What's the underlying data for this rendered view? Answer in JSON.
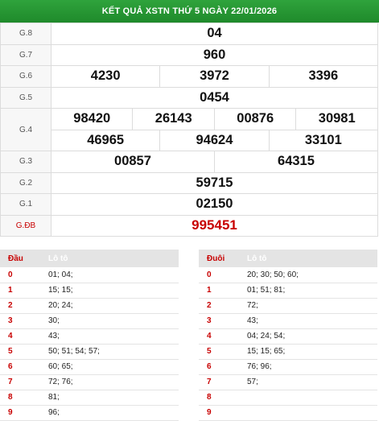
{
  "header": {
    "title": "KẾT QUẢ XSTN THỨ 5 NGÀY 22/01/2026"
  },
  "results": {
    "g8": {
      "label": "G.8",
      "numbers": [
        "04"
      ]
    },
    "g7": {
      "label": "G.7",
      "numbers": [
        "960"
      ]
    },
    "g6": {
      "label": "G.6",
      "numbers": [
        "4230",
        "3972",
        "3396"
      ]
    },
    "g5": {
      "label": "G.5",
      "numbers": [
        "0454"
      ]
    },
    "g4": {
      "label": "G.4",
      "row1": [
        "98420",
        "26143",
        "00876",
        "30981"
      ],
      "row2": [
        "46965",
        "94624",
        "33101"
      ]
    },
    "g3": {
      "label": "G.3",
      "numbers": [
        "00857",
        "64315"
      ]
    },
    "g2": {
      "label": "G.2",
      "numbers": [
        "59715"
      ]
    },
    "g1": {
      "label": "G.1",
      "numbers": [
        "02150"
      ]
    },
    "gdb": {
      "label": "G.ĐB",
      "numbers": [
        "995451"
      ]
    }
  },
  "loto_head": {
    "col1": "Đầu",
    "col2": "Lô tô",
    "rows": [
      {
        "digit": "0",
        "values": "01; 04;"
      },
      {
        "digit": "1",
        "values": "15; 15;"
      },
      {
        "digit": "2",
        "values": "20; 24;"
      },
      {
        "digit": "3",
        "values": "30;"
      },
      {
        "digit": "4",
        "values": "43;"
      },
      {
        "digit": "5",
        "values": "50; 51; 54; 57;"
      },
      {
        "digit": "6",
        "values": "60; 65;"
      },
      {
        "digit": "7",
        "values": "72; 76;"
      },
      {
        "digit": "8",
        "values": "81;"
      },
      {
        "digit": "9",
        "values": "96;"
      }
    ]
  },
  "loto_tail": {
    "col1": "Đuôi",
    "col2": "Lô tô",
    "rows": [
      {
        "digit": "0",
        "values": "20; 30; 50; 60;"
      },
      {
        "digit": "1",
        "values": "01; 51; 81;"
      },
      {
        "digit": "2",
        "values": "72;"
      },
      {
        "digit": "3",
        "values": "43;"
      },
      {
        "digit": "4",
        "values": "04; 24; 54;"
      },
      {
        "digit": "5",
        "values": "15; 15; 65;"
      },
      {
        "digit": "6",
        "values": "76; 96;"
      },
      {
        "digit": "7",
        "values": "57;"
      },
      {
        "digit": "8",
        "values": ""
      },
      {
        "digit": "9",
        "values": ""
      }
    ]
  }
}
